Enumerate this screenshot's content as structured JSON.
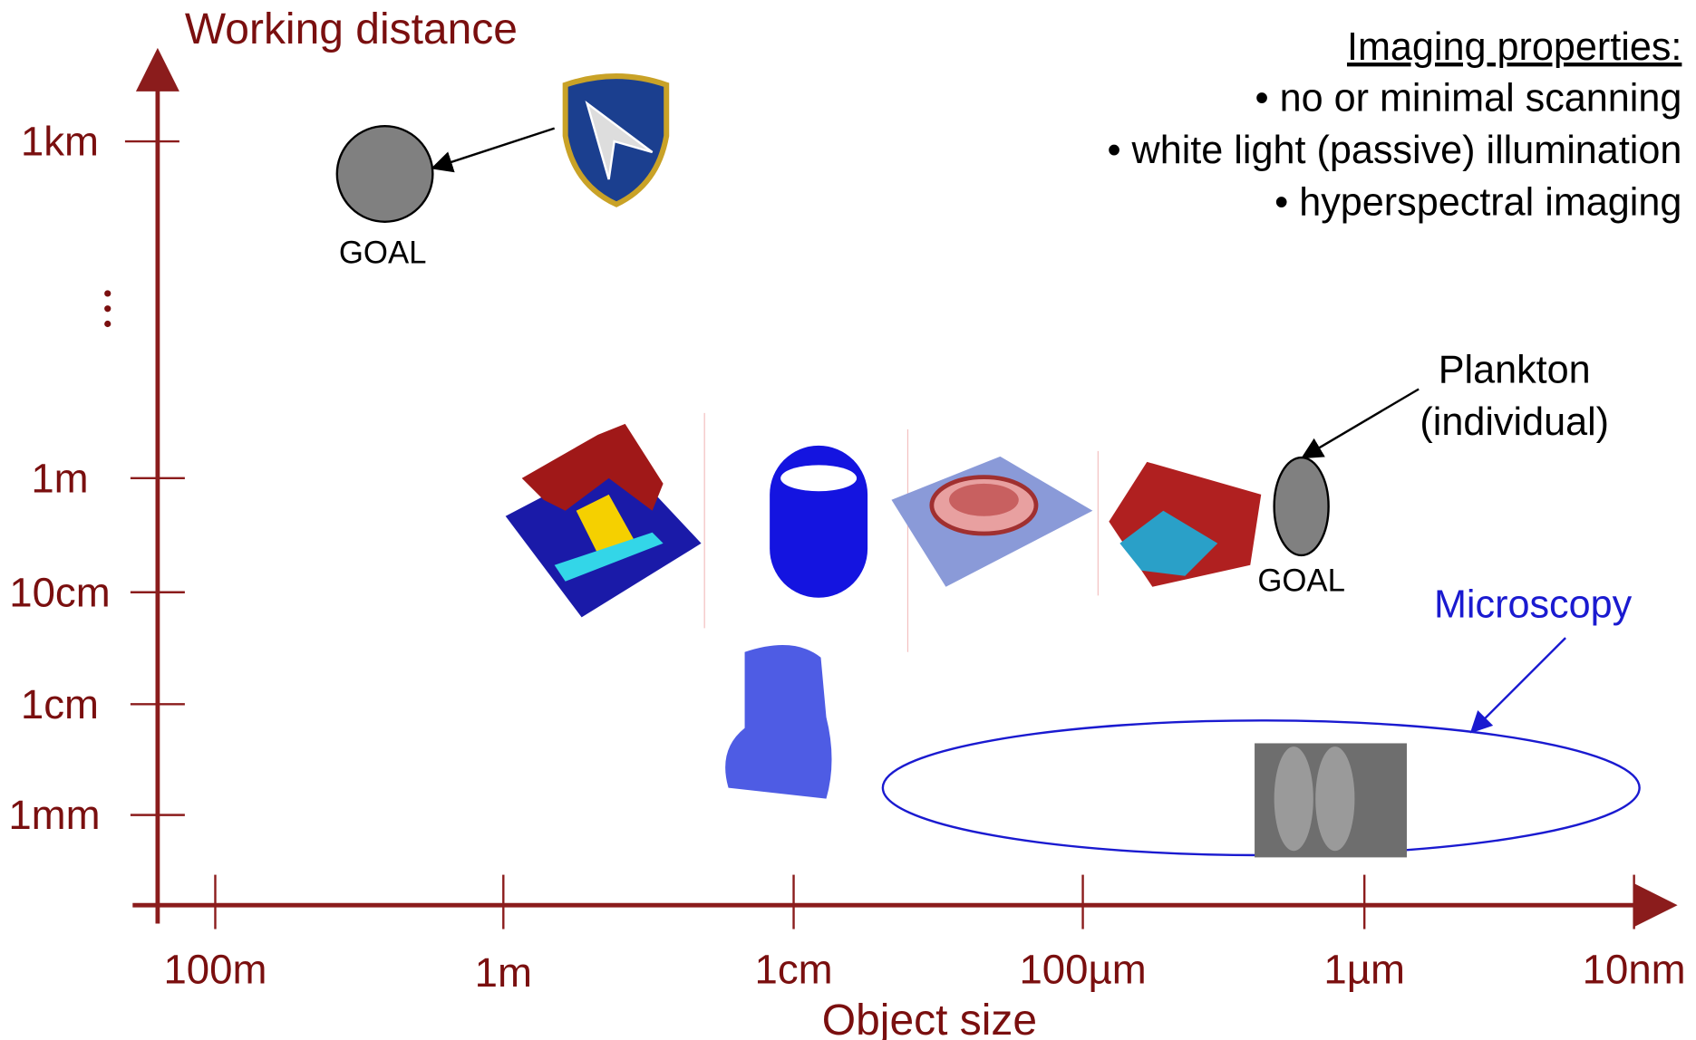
{
  "y_axis": {
    "title": "Working distance",
    "ticks": [
      "1km",
      "1m",
      "10cm",
      "1cm",
      "1mm"
    ]
  },
  "x_axis": {
    "title": "Object size",
    "ticks": [
      "100m",
      "1m",
      "1cm",
      "100µm",
      "1µm",
      "10nm"
    ]
  },
  "properties": {
    "heading": "Imaging properties:",
    "items": [
      "• no or minimal scanning",
      "• white light (passive) illumination",
      "• hyperspectral imaging"
    ]
  },
  "annotations": {
    "goal_remote": "GOAL",
    "goal_plankton": "GOAL",
    "plankton": [
      "Plankton",
      "(individual)"
    ],
    "microscopy": "Microscopy"
  }
}
